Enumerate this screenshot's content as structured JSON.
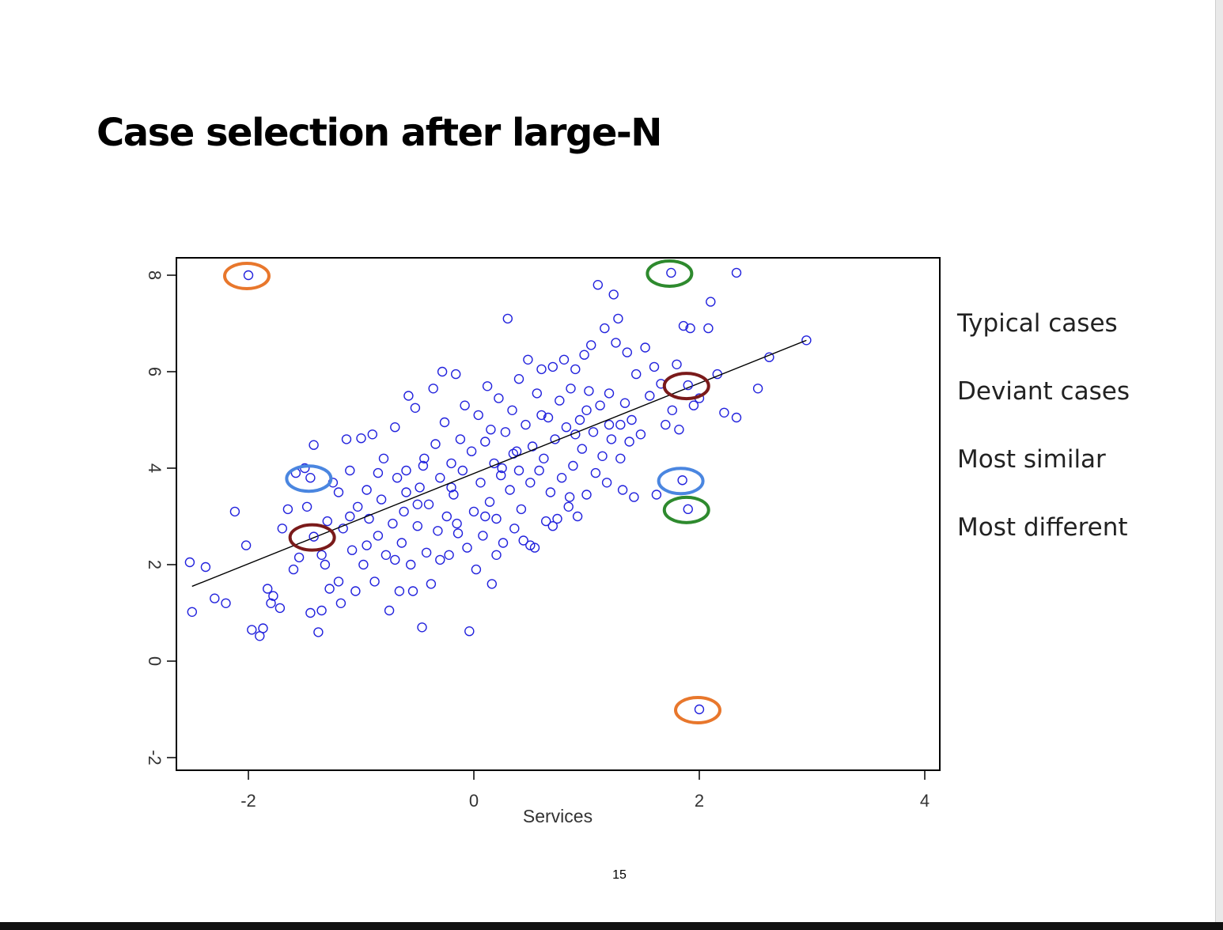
{
  "slide": {
    "title": "Case selection after large-N",
    "page_number": "15"
  },
  "chart_data": {
    "type": "scatter",
    "title": "",
    "xlabel": "Services",
    "ylabel": "",
    "xlim": [
      -2.6,
      4.1
    ],
    "ylim": [
      -2.3,
      8.4
    ],
    "xticks": [
      -2,
      0,
      2,
      4
    ],
    "yticks": [
      -2,
      0,
      2,
      4,
      6,
      8
    ],
    "grid": false,
    "point_color": "#2222dd",
    "regression_line": {
      "x": [
        -2.5,
        2.95
      ],
      "y": [
        1.55,
        6.65
      ],
      "color": "#000000"
    },
    "highlighted_points": [
      {
        "x": -2.0,
        "y": 8.0
      },
      {
        "x": 2.0,
        "y": -1.0
      },
      {
        "x": 1.75,
        "y": 8.05
      },
      {
        "x": 1.9,
        "y": 3.15
      },
      {
        "x": -1.45,
        "y": 3.8
      },
      {
        "x": 1.85,
        "y": 3.75
      },
      {
        "x": -1.42,
        "y": 2.58
      },
      {
        "x": 1.9,
        "y": 5.72
      }
    ],
    "circle_colors": {
      "orange": "#e8772c",
      "green": "#2e8a2e",
      "blue": "#4a86e0",
      "maroon": "#7a1a1a"
    },
    "points": [
      [
        -2.52,
        2.05
      ],
      [
        -2.5,
        1.02
      ],
      [
        -2.38,
        1.95
      ],
      [
        -2.3,
        1.3
      ],
      [
        -2.2,
        1.2
      ],
      [
        -2.12,
        3.1
      ],
      [
        -2.02,
        2.4
      ],
      [
        -1.97,
        0.65
      ],
      [
        -1.9,
        0.52
      ],
      [
        -1.87,
        0.68
      ],
      [
        -1.83,
        1.5
      ],
      [
        -1.8,
        1.2
      ],
      [
        -1.78,
        1.35
      ],
      [
        -1.72,
        1.1
      ],
      [
        -1.7,
        2.75
      ],
      [
        -1.65,
        3.15
      ],
      [
        -1.6,
        1.9
      ],
      [
        -1.55,
        2.15
      ],
      [
        -1.5,
        4.0
      ],
      [
        -1.48,
        3.2
      ],
      [
        -1.45,
        1.0
      ],
      [
        -1.42,
        4.48
      ],
      [
        -1.38,
        0.6
      ],
      [
        -1.35,
        1.05
      ],
      [
        -1.32,
        2.0
      ],
      [
        -1.3,
        2.9
      ],
      [
        -1.28,
        1.5
      ],
      [
        -1.25,
        3.7
      ],
      [
        -1.2,
        1.65
      ],
      [
        -1.18,
        1.2
      ],
      [
        -1.16,
        2.75
      ],
      [
        -1.13,
        4.6
      ],
      [
        -1.1,
        3.95
      ],
      [
        -1.08,
        2.3
      ],
      [
        -1.05,
        1.45
      ],
      [
        -1.03,
        3.2
      ],
      [
        -1.0,
        4.62
      ],
      [
        -0.98,
        2.0
      ],
      [
        -0.95,
        3.55
      ],
      [
        -0.93,
        2.95
      ],
      [
        -0.9,
        4.7
      ],
      [
        -0.88,
        1.65
      ],
      [
        -0.85,
        2.6
      ],
      [
        -0.82,
        3.35
      ],
      [
        -0.8,
        4.2
      ],
      [
        -0.78,
        2.2
      ],
      [
        -0.75,
        1.05
      ],
      [
        -0.72,
        2.85
      ],
      [
        -0.7,
        4.85
      ],
      [
        -0.68,
        3.8
      ],
      [
        -0.66,
        1.45
      ],
      [
        -0.64,
        2.45
      ],
      [
        -0.62,
        3.1
      ],
      [
        -0.6,
        3.95
      ],
      [
        -0.58,
        5.5
      ],
      [
        -0.56,
        2.0
      ],
      [
        -0.54,
        1.45
      ],
      [
        -0.52,
        5.25
      ],
      [
        -0.5,
        2.8
      ],
      [
        -0.48,
        3.6
      ],
      [
        -0.46,
        0.7
      ],
      [
        -0.44,
        4.2
      ],
      [
        -0.42,
        2.25
      ],
      [
        -0.4,
        3.25
      ],
      [
        -0.38,
        1.6
      ],
      [
        -0.36,
        5.65
      ],
      [
        -0.34,
        4.5
      ],
      [
        -0.32,
        2.7
      ],
      [
        -0.3,
        3.8
      ],
      [
        -0.28,
        6.0
      ],
      [
        -0.26,
        4.95
      ],
      [
        -0.24,
        3.0
      ],
      [
        -0.22,
        2.2
      ],
      [
        -0.2,
        4.1
      ],
      [
        -0.18,
        3.45
      ],
      [
        -0.16,
        5.95
      ],
      [
        -0.14,
        2.65
      ],
      [
        -0.12,
        4.6
      ],
      [
        -0.1,
        3.95
      ],
      [
        -0.08,
        5.3
      ],
      [
        -0.06,
        2.35
      ],
      [
        -0.04,
        0.62
      ],
      [
        -0.02,
        4.35
      ],
      [
        0.0,
        3.1
      ],
      [
        0.02,
        1.9
      ],
      [
        0.04,
        5.1
      ],
      [
        0.06,
        3.7
      ],
      [
        0.08,
        2.6
      ],
      [
        0.1,
        4.55
      ],
      [
        0.12,
        5.7
      ],
      [
        0.14,
        3.3
      ],
      [
        0.16,
        1.6
      ],
      [
        0.18,
        4.1
      ],
      [
        0.2,
        2.95
      ],
      [
        0.22,
        5.45
      ],
      [
        0.24,
        3.85
      ],
      [
        0.26,
        2.45
      ],
      [
        0.28,
        4.75
      ],
      [
        0.3,
        7.1
      ],
      [
        0.32,
        3.55
      ],
      [
        0.34,
        5.2
      ],
      [
        0.36,
        2.75
      ],
      [
        0.38,
        4.35
      ],
      [
        0.4,
        5.85
      ],
      [
        0.42,
        3.15
      ],
      [
        0.44,
        2.5
      ],
      [
        0.46,
        4.9
      ],
      [
        0.48,
        6.25
      ],
      [
        0.5,
        3.7
      ],
      [
        0.52,
        4.45
      ],
      [
        0.54,
        2.35
      ],
      [
        0.56,
        5.55
      ],
      [
        0.58,
        3.95
      ],
      [
        0.6,
        6.05
      ],
      [
        0.62,
        4.2
      ],
      [
        0.64,
        2.9
      ],
      [
        0.66,
        5.05
      ],
      [
        0.68,
        3.5
      ],
      [
        0.7,
        6.1
      ],
      [
        0.72,
        4.6
      ],
      [
        0.74,
        2.95
      ],
      [
        0.76,
        5.4
      ],
      [
        0.78,
        3.8
      ],
      [
        0.8,
        6.25
      ],
      [
        0.82,
        4.85
      ],
      [
        0.84,
        3.2
      ],
      [
        0.86,
        5.65
      ],
      [
        0.88,
        4.05
      ],
      [
        0.9,
        6.05
      ],
      [
        0.92,
        3.0
      ],
      [
        0.94,
        5.0
      ],
      [
        0.96,
        4.4
      ],
      [
        0.98,
        6.35
      ],
      [
        1.0,
        3.45
      ],
      [
        1.02,
        5.6
      ],
      [
        1.04,
        6.55
      ],
      [
        1.06,
        4.75
      ],
      [
        1.08,
        3.9
      ],
      [
        1.1,
        7.8
      ],
      [
        1.12,
        5.3
      ],
      [
        1.14,
        4.25
      ],
      [
        1.16,
        6.9
      ],
      [
        1.18,
        3.7
      ],
      [
        1.2,
        5.55
      ],
      [
        1.22,
        4.6
      ],
      [
        1.24,
        7.6
      ],
      [
        1.26,
        6.6
      ],
      [
        1.28,
        7.1
      ],
      [
        1.3,
        4.9
      ],
      [
        1.32,
        3.55
      ],
      [
        1.34,
        5.35
      ],
      [
        1.36,
        6.4
      ],
      [
        1.38,
        4.55
      ],
      [
        1.4,
        5.0
      ],
      [
        1.42,
        3.4
      ],
      [
        1.44,
        5.95
      ],
      [
        1.48,
        4.7
      ],
      [
        1.52,
        6.5
      ],
      [
        1.56,
        5.5
      ],
      [
        1.6,
        6.1
      ],
      [
        1.62,
        3.45
      ],
      [
        1.66,
        5.75
      ],
      [
        1.7,
        4.9
      ],
      [
        1.76,
        5.2
      ],
      [
        1.8,
        6.15
      ],
      [
        1.82,
        4.8
      ],
      [
        1.86,
        6.95
      ],
      [
        1.92,
        6.9
      ],
      [
        1.95,
        5.3
      ],
      [
        2.0,
        5.45
      ],
      [
        2.08,
        6.9
      ],
      [
        2.1,
        7.45
      ],
      [
        2.16,
        5.95
      ],
      [
        2.22,
        5.15
      ],
      [
        2.33,
        5.05
      ],
      [
        2.33,
        8.05
      ],
      [
        2.52,
        5.65
      ],
      [
        2.62,
        6.3
      ],
      [
        2.95,
        6.65
      ],
      [
        -1.58,
        3.9
      ],
      [
        -1.2,
        3.5
      ],
      [
        -0.95,
        2.4
      ],
      [
        -0.5,
        3.25
      ],
      [
        -0.3,
        2.1
      ],
      [
        0.2,
        2.2
      ],
      [
        0.5,
        2.4
      ],
      [
        0.7,
        2.8
      ],
      [
        1.3,
        4.2
      ],
      [
        -1.1,
        3.0
      ],
      [
        -0.7,
        2.1
      ],
      [
        0.1,
        3.0
      ],
      [
        0.4,
        3.95
      ],
      [
        0.9,
        4.7
      ],
      [
        1.2,
        4.9
      ],
      [
        -0.2,
        3.6
      ],
      [
        0.15,
        4.8
      ],
      [
        -0.6,
        3.5
      ],
      [
        0.6,
        5.1
      ],
      [
        1.0,
        5.2
      ],
      [
        -0.85,
        3.9
      ],
      [
        -1.35,
        2.2
      ],
      [
        -0.45,
        4.05
      ],
      [
        0.35,
        4.3
      ],
      [
        0.85,
        3.4
      ],
      [
        -0.15,
        2.85
      ],
      [
        0.25,
        4.0
      ]
    ]
  }
}
